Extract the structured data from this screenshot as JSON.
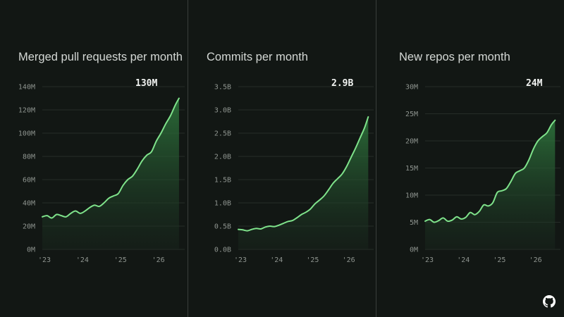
{
  "theme": {
    "background": "#121714",
    "line": "#7fe38b",
    "fill": "#2f7a3e",
    "grid": "#262c28",
    "text": "#d4d8d5",
    "axis_text": "#8e948f"
  },
  "logo_icon": "github-icon",
  "chart_data": [
    {
      "type": "area",
      "title": "Merged pull requests per month",
      "callout": "130M",
      "ylim": [
        0,
        140
      ],
      "y_ticks": [
        0,
        20,
        40,
        60,
        80,
        100,
        120,
        140
      ],
      "y_tick_labels": [
        "0M",
        "20M",
        "40M",
        "60M",
        "80M",
        "100M",
        "120M",
        "140M"
      ],
      "x_range": [
        2023.0,
        2026.75
      ],
      "x_ticks": [
        2023,
        2024,
        2025,
        2026
      ],
      "x_tick_labels": [
        "'23",
        "'24",
        "'25",
        "'26"
      ],
      "grid": true,
      "x": [
        2023.0,
        2023.125,
        2023.25,
        2023.375,
        2023.5,
        2023.625,
        2023.75,
        2023.875,
        2024.0,
        2024.125,
        2024.25,
        2024.375,
        2024.5,
        2024.625,
        2024.75,
        2024.875,
        2025.0,
        2025.125,
        2025.25,
        2025.375,
        2025.5,
        2025.625,
        2025.75,
        2025.875,
        2026.0,
        2026.125,
        2026.25,
        2026.375,
        2026.5,
        2026.6
      ],
      "values": [
        28,
        29,
        27,
        30,
        29,
        28,
        31,
        33,
        31,
        33,
        36,
        38,
        37,
        40,
        44,
        46,
        48,
        55,
        60,
        63,
        69,
        76,
        81,
        84,
        93,
        100,
        108,
        115,
        124,
        130
      ]
    },
    {
      "type": "area",
      "title": "Commits per month",
      "callout": "2.9B",
      "ylim": [
        0,
        3.5
      ],
      "y_ticks": [
        0,
        0.5,
        1.0,
        1.5,
        2.0,
        2.5,
        3.0,
        3.5
      ],
      "y_tick_labels": [
        "0.0B",
        "0.5B",
        "1.0B",
        "1.5B",
        "2.0B",
        "2.5B",
        "3.0B",
        "3.5B"
      ],
      "x_range": [
        2023.0,
        2026.75
      ],
      "x_ticks": [
        2023,
        2024,
        2025,
        2026
      ],
      "x_tick_labels": [
        "'23",
        "'24",
        "'25",
        "'26"
      ],
      "grid": true,
      "x": [
        2023.0,
        2023.125,
        2023.25,
        2023.375,
        2023.5,
        2023.625,
        2023.75,
        2023.875,
        2024.0,
        2024.125,
        2024.25,
        2024.375,
        2024.5,
        2024.625,
        2024.75,
        2024.875,
        2025.0,
        2025.125,
        2025.25,
        2025.375,
        2025.5,
        2025.625,
        2025.75,
        2025.875,
        2026.0,
        2026.125,
        2026.25,
        2026.375,
        2026.5,
        2026.6
      ],
      "values": [
        0.43,
        0.42,
        0.4,
        0.43,
        0.45,
        0.44,
        0.48,
        0.5,
        0.49,
        0.52,
        0.56,
        0.6,
        0.62,
        0.68,
        0.75,
        0.8,
        0.87,
        0.98,
        1.06,
        1.15,
        1.28,
        1.42,
        1.52,
        1.62,
        1.78,
        1.98,
        2.18,
        2.4,
        2.62,
        2.85
      ]
    },
    {
      "type": "area",
      "title": "New repos per month",
      "callout": "24M",
      "ylim": [
        0,
        30
      ],
      "y_ticks": [
        0,
        5,
        10,
        15,
        20,
        25,
        30
      ],
      "y_tick_labels": [
        "0M",
        "5M",
        "10M",
        "15M",
        "20M",
        "25M",
        "30M"
      ],
      "x_range": [
        2023.0,
        2026.75
      ],
      "x_ticks": [
        2023,
        2024,
        2025,
        2026
      ],
      "x_tick_labels": [
        "'23",
        "'24",
        "'25",
        "'26"
      ],
      "grid": true,
      "x": [
        2023.0,
        2023.125,
        2023.25,
        2023.375,
        2023.5,
        2023.625,
        2023.75,
        2023.875,
        2024.0,
        2024.125,
        2024.25,
        2024.375,
        2024.5,
        2024.625,
        2024.75,
        2024.875,
        2025.0,
        2025.125,
        2025.25,
        2025.375,
        2025.5,
        2025.625,
        2025.75,
        2025.875,
        2026.0,
        2026.125,
        2026.25,
        2026.375,
        2026.5,
        2026.6
      ],
      "values": [
        5.2,
        5.5,
        5.0,
        5.3,
        5.8,
        5.2,
        5.4,
        6.0,
        5.6,
        5.9,
        6.8,
        6.4,
        7.0,
        8.2,
        8.0,
        8.6,
        10.5,
        10.8,
        11.2,
        12.5,
        14.0,
        14.5,
        15.0,
        16.5,
        18.5,
        20.0,
        20.8,
        21.5,
        23.0,
        23.8
      ]
    }
  ]
}
